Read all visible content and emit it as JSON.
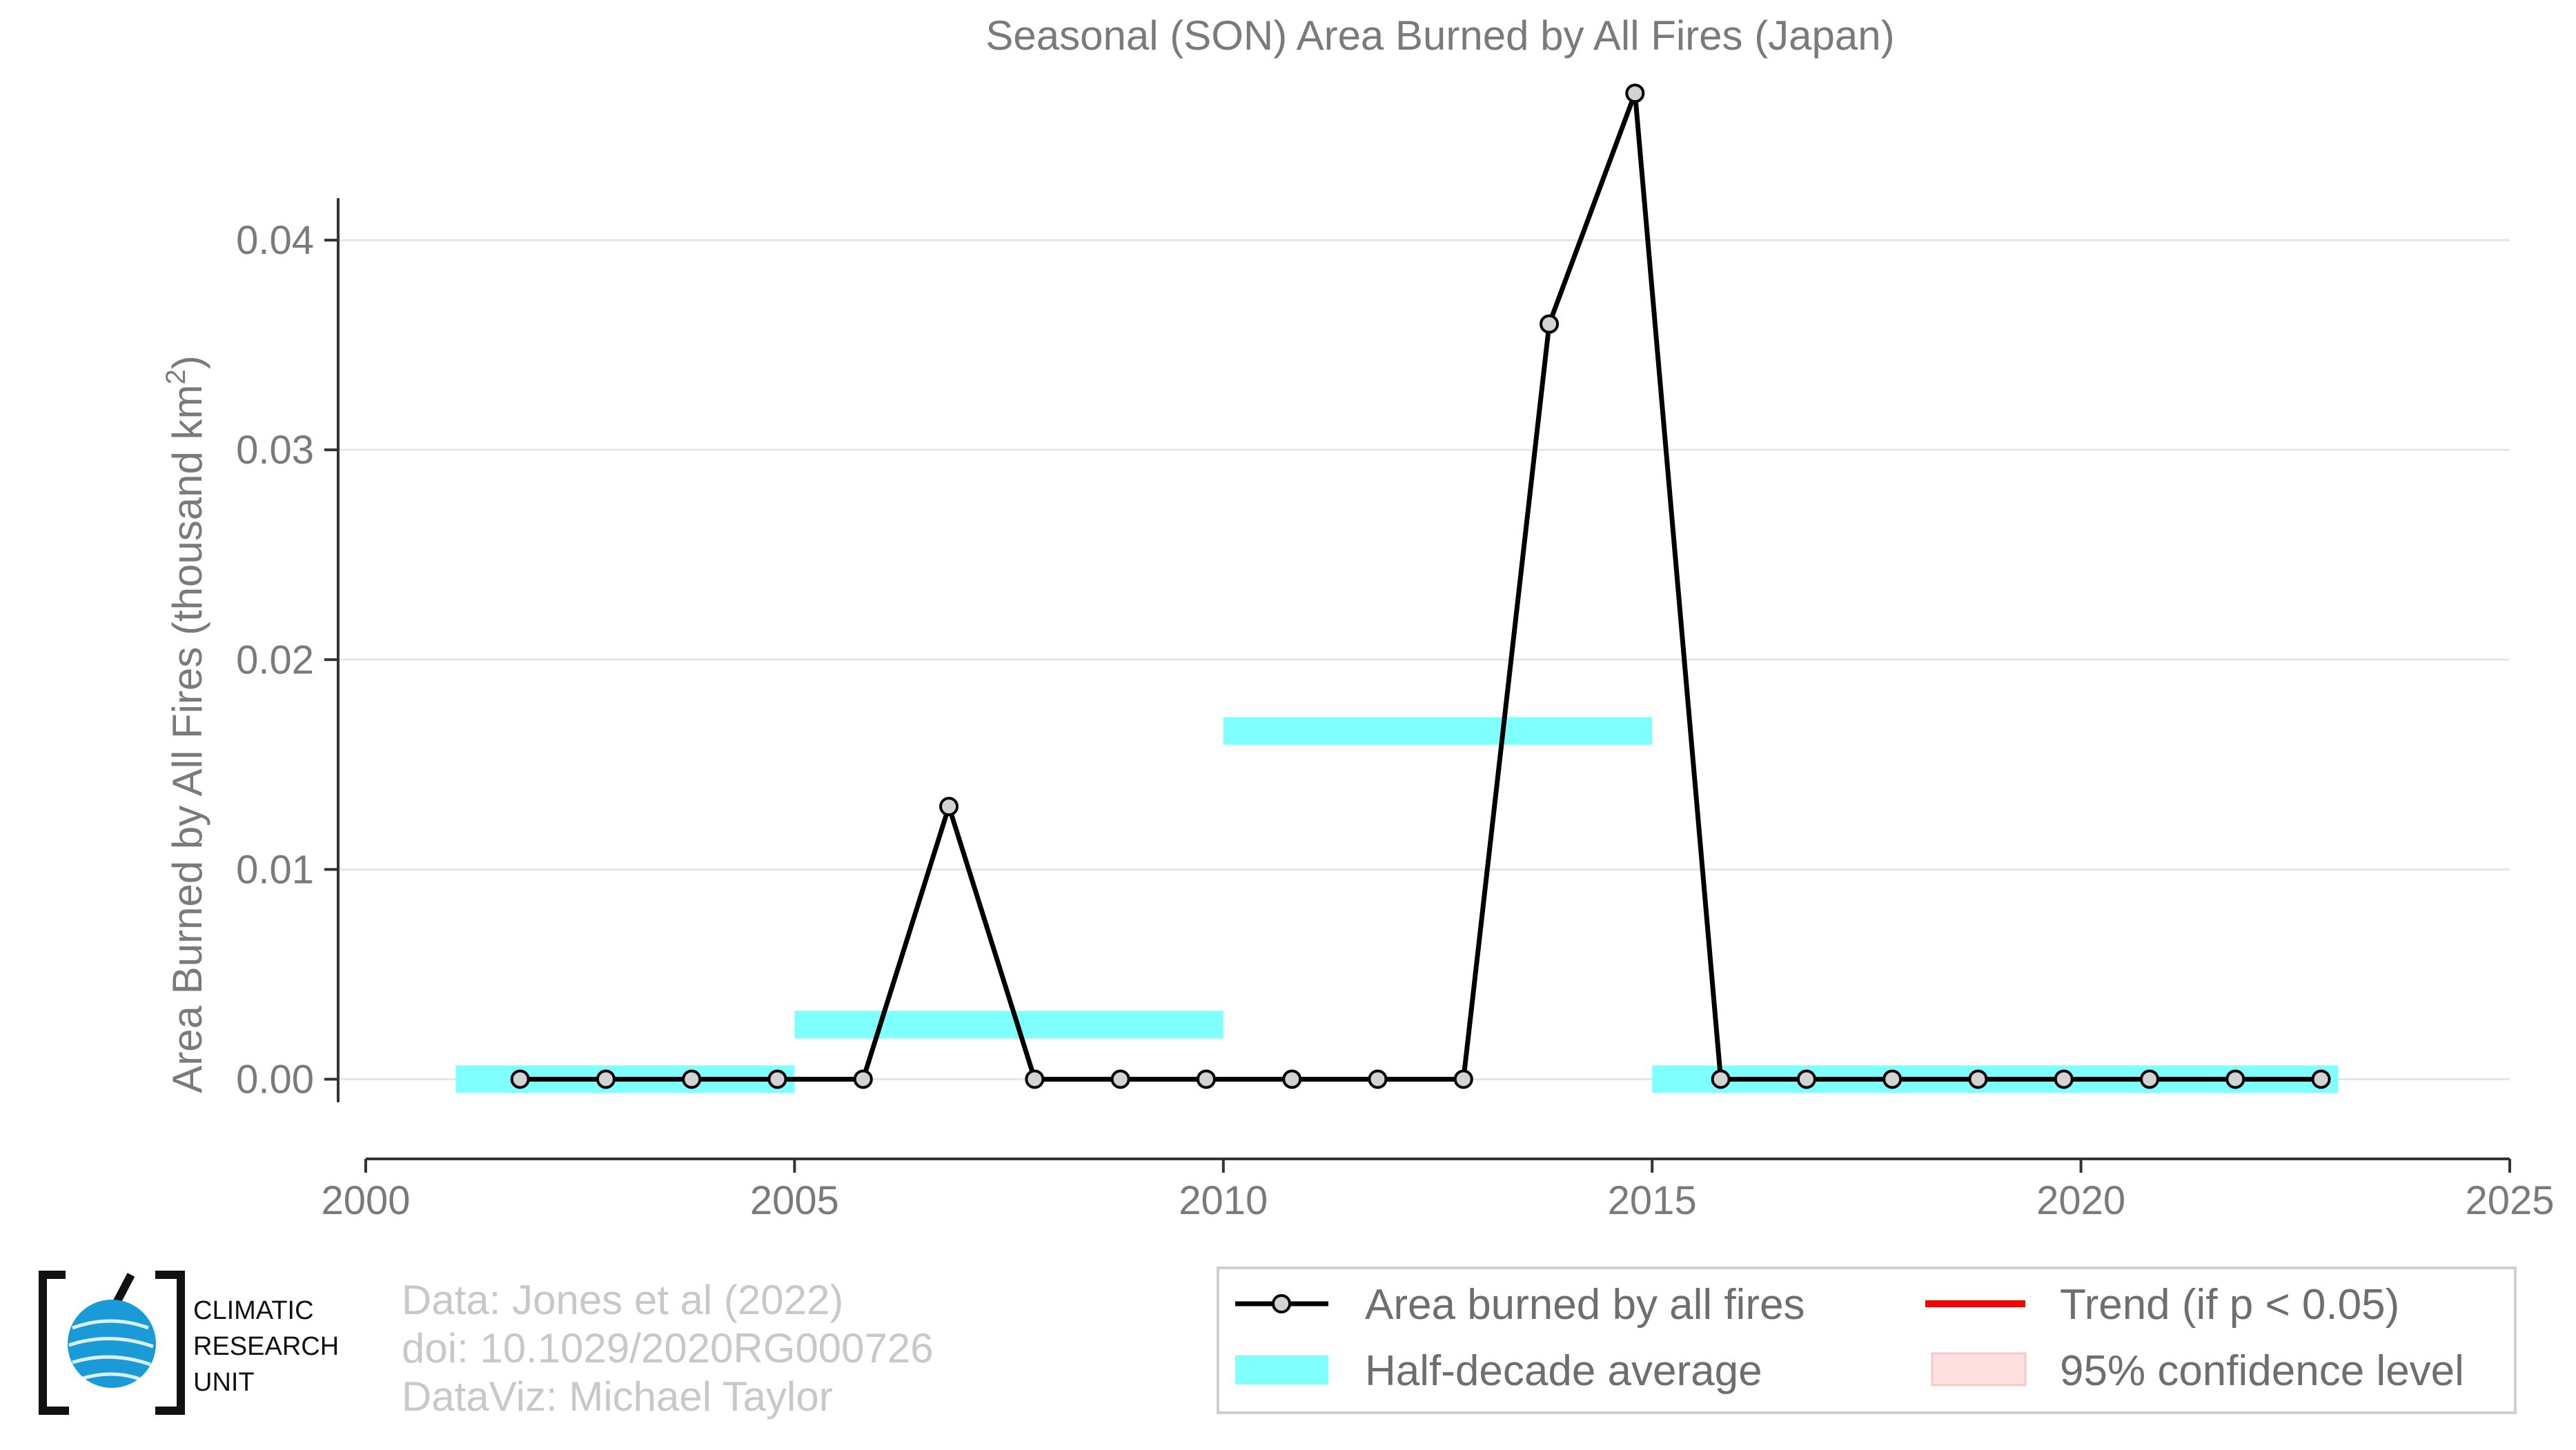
{
  "chart_data": {
    "type": "line",
    "title": "Seasonal (SON) Area Burned by All Fires (Japan)",
    "ylabel_main": "Area Burned by All Fires (thousand km",
    "ylabel_sup": "2",
    "ylabel_end": ")",
    "xlabel": "",
    "xlim": [
      2000,
      2025
    ],
    "ylim": [
      -0.0038,
      0.0475
    ],
    "x_ticks": [
      {
        "value": 2000,
        "label": "2000"
      },
      {
        "value": 2005,
        "label": "2005"
      },
      {
        "value": 2010,
        "label": "2010"
      },
      {
        "value": 2015,
        "label": "2015"
      },
      {
        "value": 2020,
        "label": "2020"
      },
      {
        "value": 2025,
        "label": "2025"
      }
    ],
    "y_ticks": [
      {
        "value": 0.0,
        "label": "0.00"
      },
      {
        "value": 0.01,
        "label": "0.01"
      },
      {
        "value": 0.02,
        "label": "0.02"
      },
      {
        "value": 0.03,
        "label": "0.03"
      },
      {
        "value": 0.04,
        "label": "0.04"
      }
    ],
    "grid": "horizontal",
    "legend_position": "bottom-right",
    "series": [
      {
        "name": "Area burned by all fires",
        "color": "#000000",
        "marker_fill": "#d3d3d3",
        "x": [
          2001.8,
          2002.8,
          2003.8,
          2004.8,
          2005.8,
          2006.8,
          2007.8,
          2008.8,
          2009.8,
          2010.8,
          2011.8,
          2012.8,
          2013.8,
          2014.8,
          2015.8,
          2016.8,
          2017.8,
          2018.8,
          2019.8,
          2020.8,
          2021.8,
          2022.8
        ],
        "y": [
          0,
          0,
          0,
          0,
          0,
          0.013,
          0,
          0,
          0,
          0,
          0,
          0,
          0.036,
          0.047,
          0,
          0,
          0,
          0,
          0,
          0,
          0,
          0
        ]
      }
    ],
    "half_decade_average": {
      "name": "Half-decade average",
      "color": "#80ffff",
      "segments": [
        {
          "x0": 2001.05,
          "x1": 2005,
          "value": 0
        },
        {
          "x0": 2005,
          "x1": 2010,
          "value": 0.0026
        },
        {
          "x0": 2010,
          "x1": 2015,
          "value": 0.0166
        },
        {
          "x0": 2015,
          "x1": 2023,
          "value": 0
        }
      ]
    },
    "legend": [
      {
        "label": "Area burned by all fires",
        "kind": "line-marker",
        "color": "#000000"
      },
      {
        "label": "Trend (if p < 0.05)",
        "kind": "line",
        "color": "#ff0000"
      },
      {
        "label": "Half-decade average",
        "kind": "band",
        "color": "#80ffff"
      },
      {
        "label": "95% confidence level",
        "kind": "band",
        "color": "#ffe0e0"
      }
    ]
  },
  "credits": [
    "Data: Jones et al (2022)",
    "doi: 10.1029/2020RG000726",
    "DataViz: Michael Taylor"
  ],
  "logo": {
    "lines": [
      "CLIMATIC",
      "RESEARCH",
      "UNIT"
    ],
    "globe_color": "#1a9ad6"
  }
}
